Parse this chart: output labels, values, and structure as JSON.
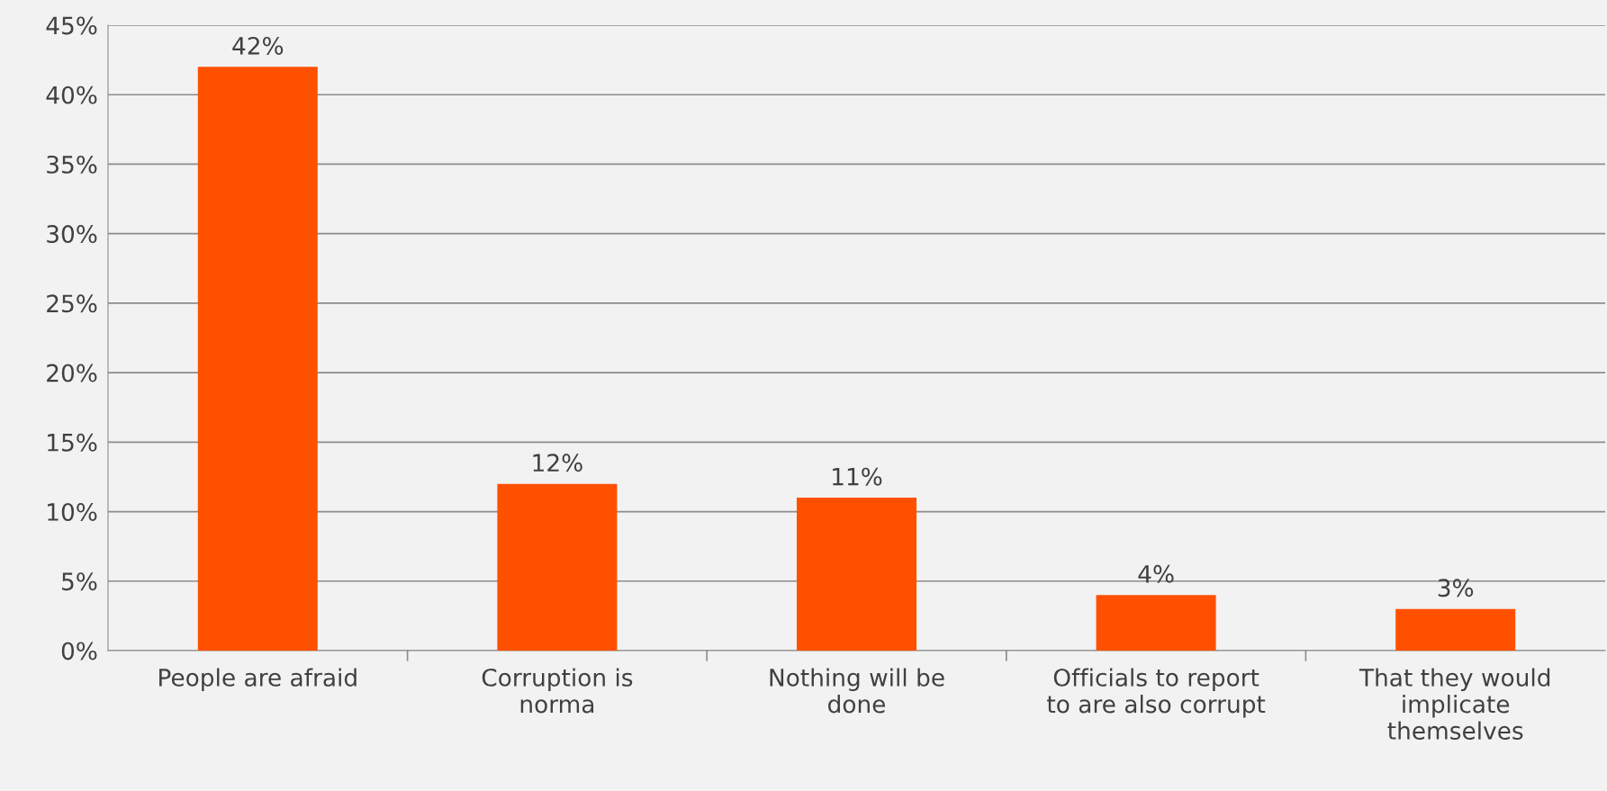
{
  "chart_data": {
    "type": "bar",
    "categories": [
      "People are afraid",
      "Corruption is\nnorma",
      "Nothing will be\ndone",
      "Officials to report\nto are also corrupt",
      "That they would\nimplicate\nthemselves"
    ],
    "values": [
      42,
      12,
      11,
      4,
      3
    ],
    "value_labels": [
      "42%",
      "12%",
      "11%",
      "4%",
      "3%"
    ],
    "color": "#ff5000",
    "ylim": [
      0,
      45
    ],
    "yticks": [
      {
        "value": 0,
        "label": "0%"
      },
      {
        "value": 5,
        "label": "5%"
      },
      {
        "value": 10,
        "label": "10%"
      },
      {
        "value": 15,
        "label": "15%"
      },
      {
        "value": 20,
        "label": "20%"
      },
      {
        "value": 25,
        "label": "25%"
      },
      {
        "value": 30,
        "label": "30%"
      },
      {
        "value": 35,
        "label": "35%"
      },
      {
        "value": 40,
        "label": "40%"
      },
      {
        "value": 45,
        "label": "45%"
      }
    ],
    "grid": "y",
    "legend": false
  }
}
